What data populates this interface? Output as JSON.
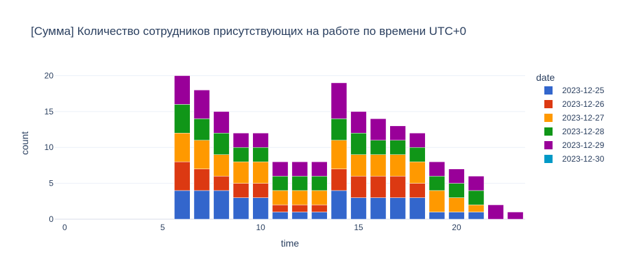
{
  "chart_data": {
    "type": "bar",
    "barmode": "stack",
    "title": "[Сумма] Количество сотрудников присутствующих на работе по времени UTC+0",
    "xlabel": "time",
    "ylabel": "count",
    "xlim": [
      -0.5,
      23.5
    ],
    "ylim": [
      0,
      21
    ],
    "xticks": [
      0,
      5,
      10,
      15,
      20
    ],
    "yticks": [
      0,
      5,
      10,
      15,
      20
    ],
    "grid": true,
    "legend_title": "date",
    "legend_position": "right",
    "x": [
      0,
      1,
      2,
      3,
      4,
      5,
      6,
      7,
      8,
      9,
      10,
      11,
      12,
      13,
      14,
      15,
      16,
      17,
      18,
      19,
      20,
      21,
      22,
      23
    ],
    "series": [
      {
        "name": "2023-12-25",
        "color": "#3366CC",
        "values": [
          0,
          0,
          0,
          0,
          0,
          0,
          4,
          4,
          4,
          3,
          3,
          1,
          1,
          1,
          4,
          3,
          3,
          3,
          3,
          1,
          1,
          1,
          0,
          0
        ]
      },
      {
        "name": "2023-12-26",
        "color": "#DC3912",
        "values": [
          0,
          0,
          0,
          0,
          0,
          0,
          4,
          3,
          2,
          2,
          2,
          1,
          1,
          1,
          3,
          3,
          3,
          3,
          2,
          0,
          0,
          0,
          0,
          0
        ]
      },
      {
        "name": "2023-12-27",
        "color": "#FF9900",
        "values": [
          0,
          0,
          0,
          0,
          0,
          0,
          4,
          4,
          3,
          3,
          3,
          2,
          2,
          2,
          4,
          3,
          3,
          3,
          3,
          3,
          2,
          1,
          0,
          0
        ]
      },
      {
        "name": "2023-12-28",
        "color": "#109618",
        "values": [
          0,
          0,
          0,
          0,
          0,
          0,
          4,
          3,
          3,
          2,
          2,
          2,
          2,
          2,
          3,
          3,
          2,
          2,
          2,
          2,
          2,
          2,
          0,
          0
        ]
      },
      {
        "name": "2023-12-29",
        "color": "#990099",
        "values": [
          0,
          0,
          0,
          0,
          0,
          0,
          4,
          4,
          3,
          2,
          2,
          2,
          2,
          2,
          5,
          3,
          3,
          2,
          2,
          2,
          2,
          2,
          2,
          1
        ]
      },
      {
        "name": "2023-12-30",
        "color": "#0099C6",
        "values": [
          0,
          0,
          0,
          0,
          0,
          0,
          0,
          0,
          0,
          0,
          0,
          0,
          0,
          0,
          0,
          0,
          0,
          0,
          0,
          0,
          0,
          0,
          0,
          0
        ]
      }
    ]
  }
}
